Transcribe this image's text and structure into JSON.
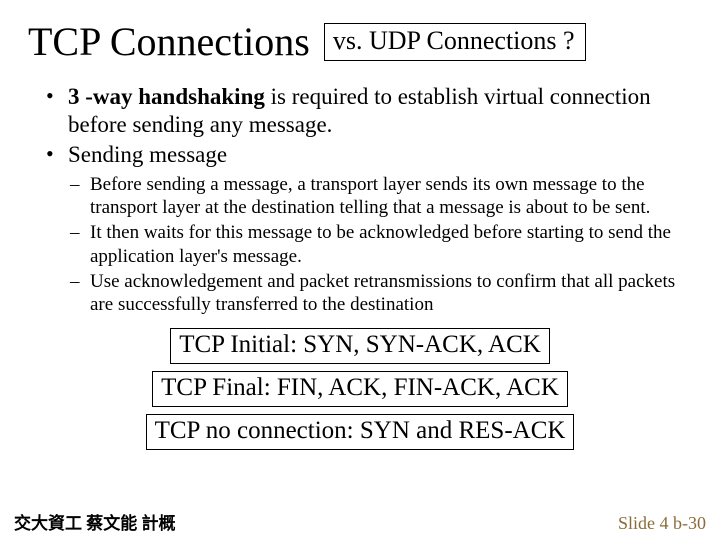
{
  "title": "TCP Connections",
  "title_box": "vs. UDP Connections ?",
  "bullets": {
    "b1_prefix_bold": "3 -way handshaking",
    "b1_rest": " is required to establish virtual connection before sending any message.",
    "b2": "Sending message"
  },
  "sub_bullets": {
    "s1": "Before sending a message, a transport layer sends its own message to the transport layer at the destination telling that a message is about to be sent.",
    "s2": "It then waits for this message to be acknowledged before starting to send the application layer's message.",
    "s3": "Use acknowledgement and packet retransmissions to confirm that all packets are successfully transferred to the destination"
  },
  "boxes": {
    "box1": "TCP Initial: SYN,  SYN-ACK,  ACK",
    "box2": "TCP Final:  FIN,  ACK,  FIN-ACK,  ACK",
    "box3": "TCP no connection:  SYN and RES-ACK"
  },
  "footer": {
    "left": "交大資工 蔡文能 計概",
    "right": "Slide 4 b-30"
  },
  "colors": {
    "background": "#ffffff",
    "text": "#000000",
    "footer_right": "#8a6d3b",
    "border": "#000000"
  }
}
